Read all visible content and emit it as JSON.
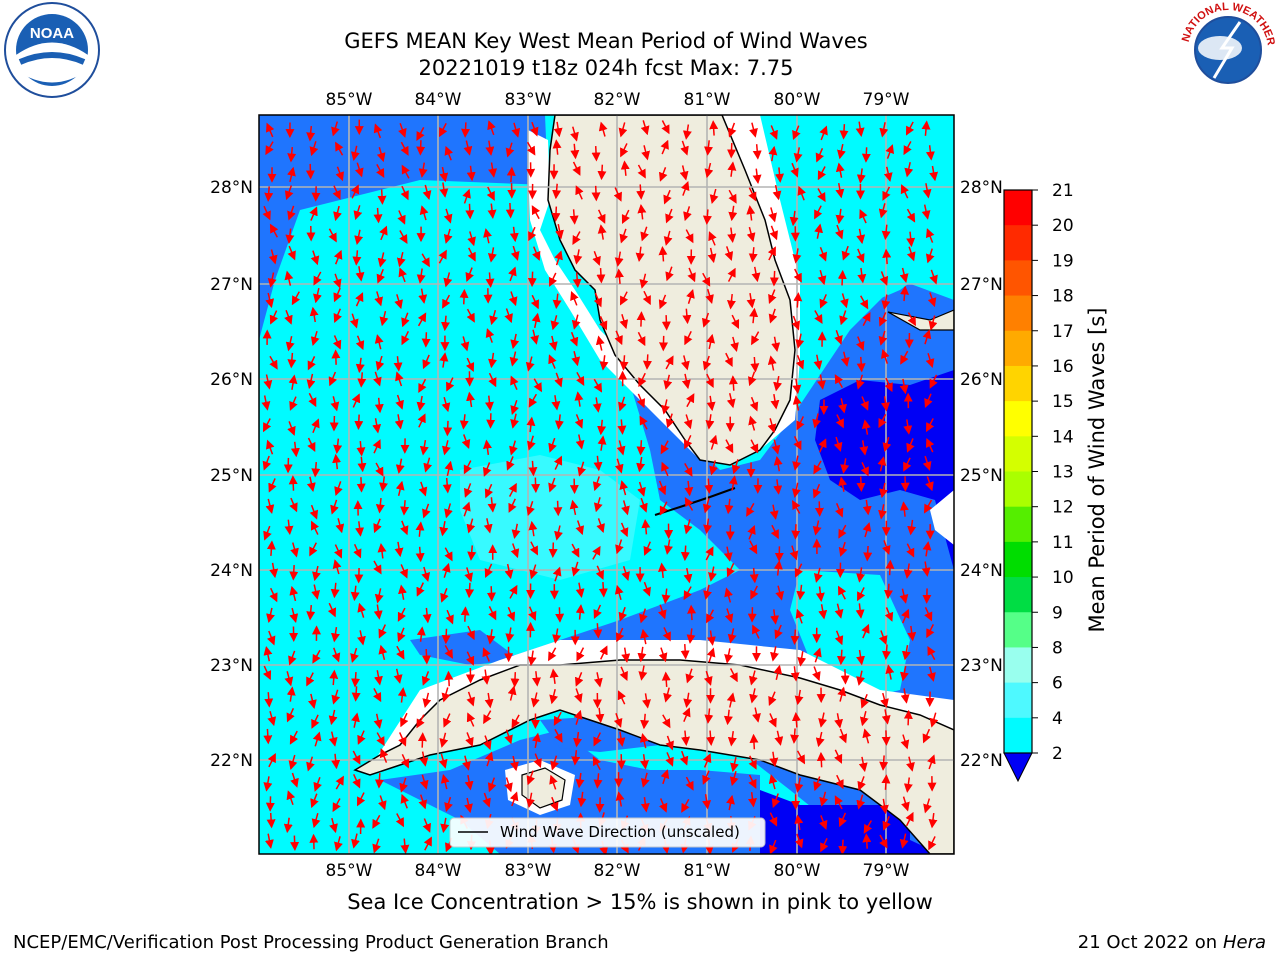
{
  "title": {
    "line1": "GEFS MEAN Key West Mean Period of Wind Waves",
    "line2": "20221019 t18z 024h fcst   Max: 7.75"
  },
  "map": {
    "lon_labels": [
      "85°W",
      "84°W",
      "83°W",
      "82°W",
      "81°W",
      "80°W",
      "79°W"
    ],
    "lat_labels": [
      "28°N",
      "27°N",
      "26°N",
      "25°N",
      "24°N",
      "23°N",
      "22°N"
    ],
    "legend_label": "Wind Wave Direction (unscaled)",
    "colors": {
      "land": "#efedde",
      "blue_2_4": "#1f75fe",
      "cyan_4_6": "#00fbff",
      "cyan_6_8": "#4ef9ff",
      "dark_blue": "#0000f5",
      "arrow": "#ff0000"
    }
  },
  "colorbar": {
    "title": "Mean Period of Wind Waves [s]",
    "ticks": [
      "21",
      "20",
      "19",
      "18",
      "17",
      "16",
      "15",
      "14",
      "13",
      "12",
      "11",
      "10",
      "9",
      "8",
      "6",
      "4",
      "2"
    ],
    "colors": [
      "#ff0000",
      "#ff2a00",
      "#ff5500",
      "#ff8000",
      "#ffaa00",
      "#ffd400",
      "#ffff00",
      "#d4ff00",
      "#aaff00",
      "#55ee00",
      "#00dd00",
      "#00dd44",
      "#55ff88",
      "#99ffee",
      "#4ef9ff",
      "#00fbff",
      "#1f75fe"
    ]
  },
  "caption": "Sea Ice Concentration > 15% is shown in pink to yellow",
  "footer": {
    "left": "NCEP/EMC/Verification Post Processing Product Generation Branch",
    "date": "21 Oct 2022 on",
    "host": "Hera"
  },
  "logos": {
    "noaa_text": "NOAA",
    "nws_text": "NATIONAL WEATHER SERVICE"
  }
}
